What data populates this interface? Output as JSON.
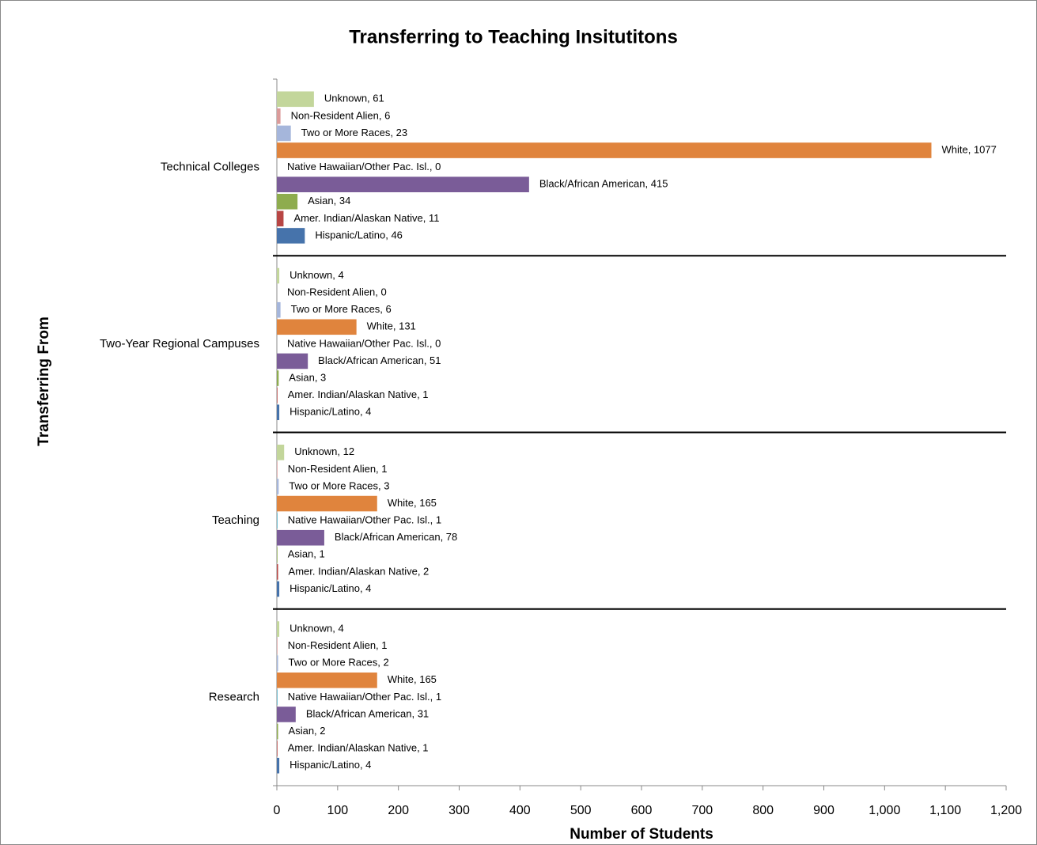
{
  "chart_data": {
    "type": "bar",
    "orientation": "horizontal",
    "title": "Transferring to Teaching Insitutitons",
    "xlabel": "Number of Students",
    "ylabel": "Transferring From",
    "categories": [
      "Technical Colleges",
      "Two-Year Regional Campuses",
      "Teaching",
      "Research"
    ],
    "series": [
      {
        "name": "Unknown",
        "color": "#c3d69b",
        "values": [
          61,
          4,
          12,
          4
        ],
        "value_labels": [
          "Unknown, 61",
          "Unknown, 4",
          "Unknown, 12",
          "Unknown, 4"
        ]
      },
      {
        "name": "Non-Resident Alien",
        "color": "#db9b9a",
        "values": [
          6,
          0,
          1,
          1
        ],
        "value_labels": [
          "Non-Resident Alien, 6",
          "Non-Resident Alien, 0",
          "Non-Resident Alien, 1",
          "Non-Resident Alien, 1"
        ]
      },
      {
        "name": "Two or More Races",
        "color": "#a5b6db",
        "values": [
          23,
          6,
          3,
          2
        ],
        "value_labels": [
          "Two or More Races, 23",
          "Two or More Races, 6",
          "Two or More Races, 3",
          "Two or More Races, 2"
        ]
      },
      {
        "name": "White",
        "color": "#e0843d",
        "values": [
          1077,
          131,
          165,
          165
        ],
        "value_labels": [
          "White, 1077",
          "White, 131",
          "White, 165",
          "White, 165"
        ]
      },
      {
        "name": "Native Hawaiian/Other Pac. Isl.",
        "color": "#46aac5",
        "values": [
          0,
          0,
          1,
          1
        ],
        "value_labels": [
          "Native Hawaiian/Other Pac. Isl., 0",
          "Native Hawaiian/Other Pac. Isl., 0",
          "Native Hawaiian/Other Pac. Isl., 1",
          "Native Hawaiian/Other Pac. Isl., 1"
        ]
      },
      {
        "name": "Black/African American",
        "color": "#7a5c98",
        "values": [
          415,
          51,
          78,
          31
        ],
        "value_labels": [
          "Black/African American, 415",
          "Black/African American, 51",
          "Black/African American, 78",
          "Black/African American, 31"
        ]
      },
      {
        "name": "Asian",
        "color": "#8eac4e",
        "values": [
          34,
          3,
          1,
          2
        ],
        "value_labels": [
          "Asian, 34",
          "Asian, 3",
          "Asian, 1",
          "Asian, 2"
        ]
      },
      {
        "name": "Amer. Indian/Alaskan Native",
        "color": "#b84644",
        "values": [
          11,
          1,
          2,
          1
        ],
        "value_labels": [
          "Amer. Indian/Alaskan Native, 11",
          "Amer. Indian/Alaskan Native, 1",
          "Amer. Indian/Alaskan Native, 2",
          "Amer. Indian/Alaskan Native, 1"
        ]
      },
      {
        "name": "Hispanic/Latino",
        "color": "#4673ab",
        "values": [
          46,
          4,
          4,
          4
        ],
        "value_labels": [
          "Hispanic/Latino, 46",
          "Hispanic/Latino, 4",
          "Hispanic/Latino, 4",
          "Hispanic/Latino, 4"
        ]
      }
    ],
    "xlim": [
      0,
      1200
    ],
    "xticks": [
      0,
      100,
      200,
      300,
      400,
      500,
      600,
      700,
      800,
      900,
      {
        "value": 1000,
        "label": "1,000"
      },
      {
        "value": 1100,
        "label": "1,100"
      },
      {
        "value": 1200,
        "label": "1,200"
      }
    ],
    "grid": false
  }
}
